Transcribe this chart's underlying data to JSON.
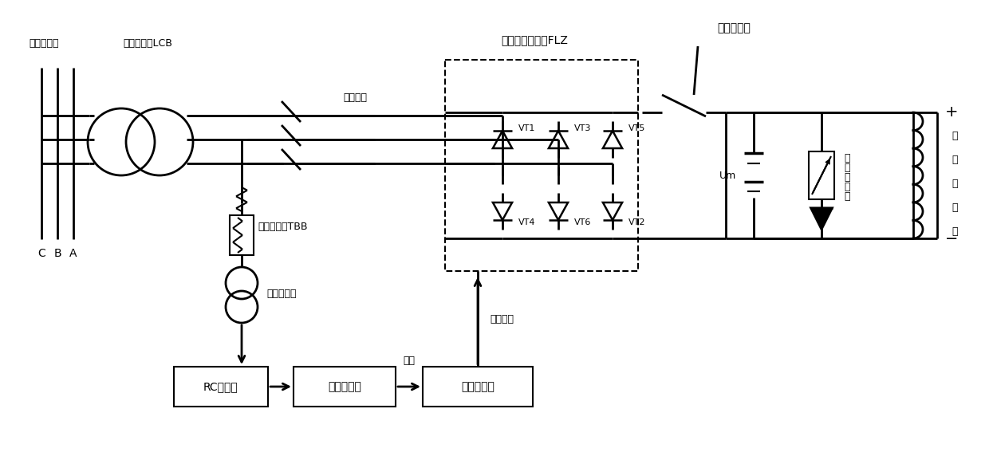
{
  "bg_color": "#ffffff",
  "line_color": "#000000",
  "labels": {
    "generator_terminal": "发电机机端",
    "excitation_transformer": "励磁变压器LCB",
    "C": "C",
    "B": "B",
    "A": "A",
    "ac_knife": "交流刀闸",
    "sync_transformer": "同步变压器TBB",
    "isolation_ct": "隔离互感器",
    "rc_filter": "RC滤波器",
    "hysteresis_comp": "迟滞比较器",
    "square_wave": "方波",
    "excitation_regulator": "励磁调节器",
    "three_phase_bridge": "三相全控整流桥FLZ",
    "magnetic_breaker": "磁场断路器",
    "VT1": "VT1",
    "VT3": "VT3",
    "VT5": "VT5",
    "VT4": "VT4",
    "VT6": "VT6",
    "VT2": "VT2",
    "Um": "Um",
    "nonlinear_resistor_1": "非",
    "nonlinear_resistor_2": "线",
    "nonlinear_resistor_3": "性",
    "nonlinear_resistor_4": "电",
    "nonlinear_resistor_5": "阻",
    "generator_rotor_1": "发",
    "generator_rotor_2": "电",
    "generator_rotor_3": "机",
    "generator_rotor_4": "转",
    "generator_rotor_5": "子",
    "six_pulse": "六路脉冲",
    "plus": "+",
    "minus": "−"
  },
  "figsize": [
    12.4,
    5.67
  ],
  "dpi": 100
}
